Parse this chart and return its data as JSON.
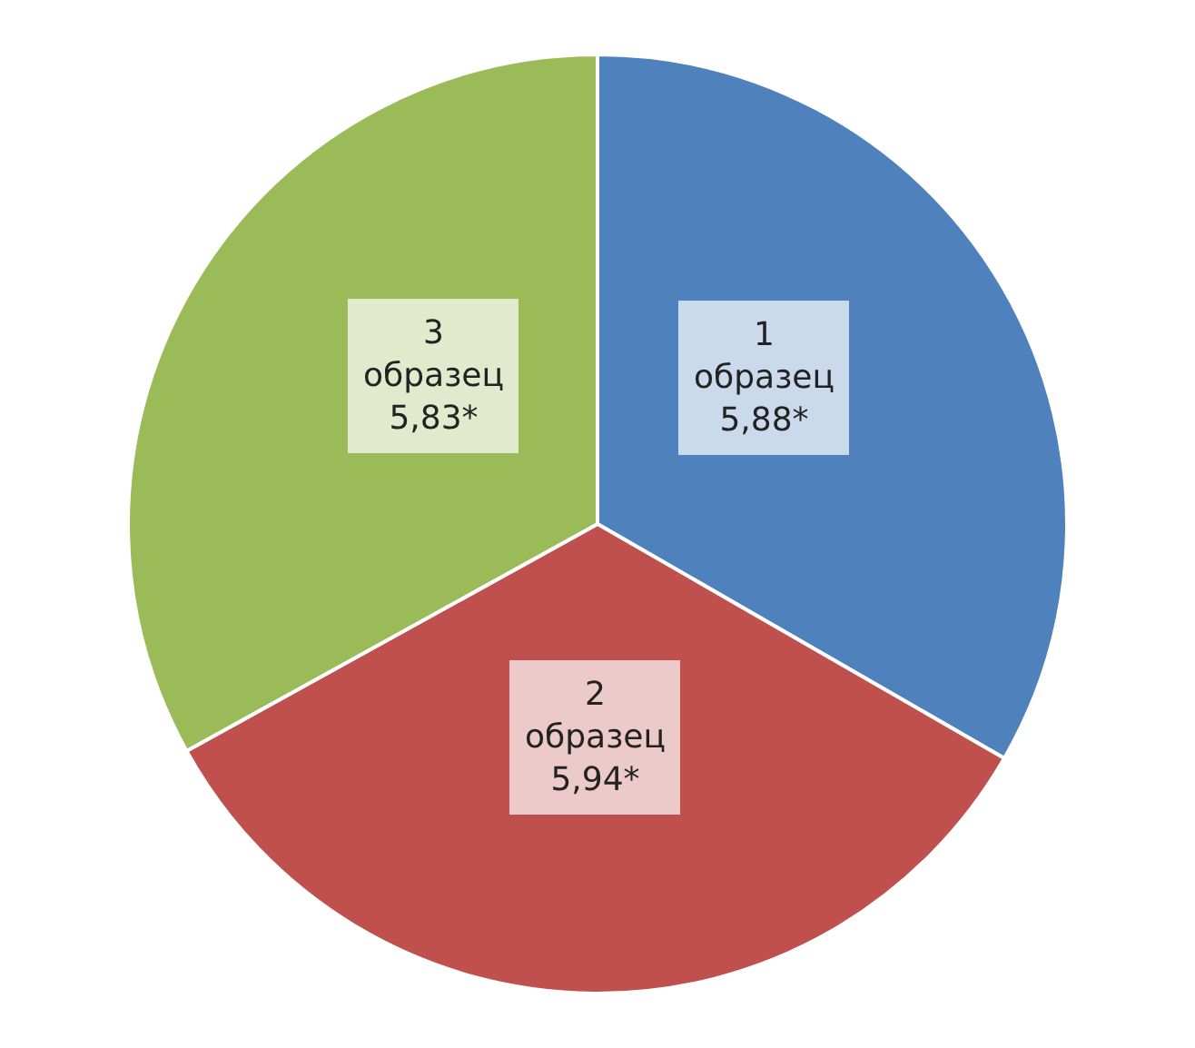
{
  "chart_data": {
    "type": "pie",
    "categories": [
      "1 образец",
      "2 образец",
      "3 образец"
    ],
    "values": [
      5.88,
      5.94,
      5.83
    ],
    "value_labels": [
      "5,88*",
      "5,94*",
      "5,83*"
    ],
    "colors": [
      "#4f81bd",
      "#c0504d",
      "#9bbb59"
    ],
    "legend": false
  }
}
